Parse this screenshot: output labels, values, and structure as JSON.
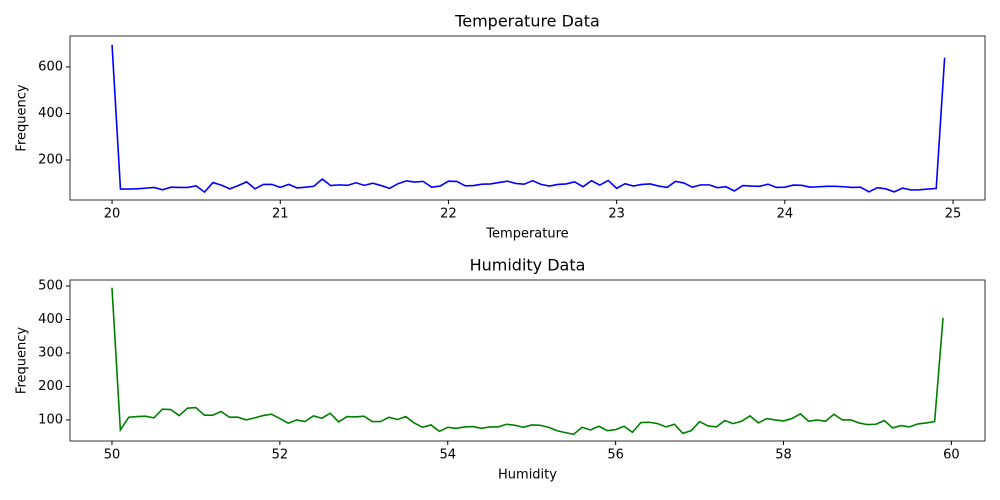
{
  "chart_data": [
    {
      "type": "line",
      "title": "Temperature Data",
      "xlabel": "Temperature",
      "ylabel": "Frequency",
      "x": [
        20,
        20.05,
        20.1,
        20.15,
        20.2,
        20.25,
        20.3,
        20.35,
        20.4,
        20.45,
        20.5,
        20.55,
        20.6,
        20.65,
        20.7,
        20.75,
        20.8,
        20.85,
        20.9,
        20.95,
        21,
        21.05,
        21.1,
        21.15,
        21.2,
        21.25,
        21.3,
        21.35,
        21.4,
        21.45,
        21.5,
        21.55,
        21.6,
        21.65,
        21.7,
        21.75,
        21.8,
        21.85,
        21.9,
        21.95,
        22,
        22.05,
        22.1,
        22.15,
        22.2,
        22.25,
        22.3,
        22.35,
        22.4,
        22.45,
        22.5,
        22.55,
        22.6,
        22.65,
        22.7,
        22.75,
        22.8,
        22.85,
        22.9,
        22.95,
        23,
        23.05,
        23.1,
        23.15,
        23.2,
        23.25,
        23.3,
        23.35,
        23.4,
        23.45,
        23.5,
        23.55,
        23.6,
        23.65,
        23.7,
        23.75,
        23.8,
        23.85,
        23.9,
        23.95,
        24,
        24.05,
        24.1,
        24.15,
        24.2,
        24.25,
        24.3,
        24.35,
        24.4,
        24.45,
        24.5,
        24.55,
        24.6,
        24.65,
        24.7,
        24.75,
        24.8,
        24.85,
        24.9,
        24.95
      ],
      "series": [
        {
          "name": "Temperature",
          "color": "#0000ff",
          "values": [
            695,
            75,
            75,
            76,
            79,
            82,
            72,
            83,
            82,
            82,
            89,
            62,
            103,
            92,
            76,
            90,
            106,
            76,
            95,
            95,
            82,
            95,
            80,
            83,
            87,
            118,
            90,
            93,
            91,
            102,
            91,
            100,
            90,
            78,
            98,
            110,
            105,
            108,
            83,
            88,
            109,
            108,
            89,
            90,
            96,
            97,
            103,
            109,
            99,
            96,
            111,
            95,
            88,
            95,
            97,
            106,
            85,
            111,
            92,
            112,
            78,
            98,
            88,
            95,
            97,
            88,
            82,
            108,
            101,
            83,
            93,
            93,
            81,
            85,
            67,
            90,
            88,
            87,
            96,
            82,
            83,
            92,
            91,
            83,
            85,
            87,
            87,
            85,
            82,
            83,
            63,
            81,
            76,
            63,
            79,
            71,
            72,
            75,
            78,
            640
          ]
        }
      ],
      "xlim": [
        19.75,
        25.19
      ],
      "ylim": [
        28,
        733
      ],
      "xticks": [
        20,
        21,
        22,
        23,
        24,
        25
      ],
      "yticks": [
        200,
        400,
        600
      ]
    },
    {
      "type": "line",
      "title": "Humidity Data",
      "xlabel": "Humidity",
      "ylabel": "Frequency",
      "x": [
        50,
        50.1,
        50.2,
        50.3,
        50.4,
        50.5,
        50.6,
        50.7,
        50.8,
        50.9,
        51,
        51.1,
        51.2,
        51.3,
        51.4,
        51.5,
        51.6,
        51.7,
        51.8,
        51.9,
        52,
        52.1,
        52.2,
        52.3,
        52.4,
        52.5,
        52.6,
        52.7,
        52.8,
        52.9,
        53,
        53.1,
        53.2,
        53.3,
        53.4,
        53.5,
        53.6,
        53.7,
        53.8,
        53.9,
        54,
        54.1,
        54.2,
        54.3,
        54.4,
        54.5,
        54.6,
        54.7,
        54.8,
        54.9,
        55,
        55.1,
        55.2,
        55.3,
        55.4,
        55.5,
        55.6,
        55.7,
        55.8,
        55.9,
        56,
        56.1,
        56.2,
        56.3,
        56.4,
        56.5,
        56.6,
        56.7,
        56.8,
        56.9,
        57,
        57.1,
        57.2,
        57.3,
        57.4,
        57.5,
        57.6,
        57.7,
        57.8,
        57.9,
        58,
        58.1,
        58.2,
        58.3,
        58.4,
        58.5,
        58.6,
        58.7,
        58.8,
        58.9,
        59,
        59.1,
        59.2,
        59.3,
        59.4,
        59.5,
        59.6,
        59.7,
        59.8,
        59.9
      ],
      "series": [
        {
          "name": "Humidity",
          "color": "#008000",
          "values": [
            495,
            70,
            108,
            110,
            111,
            106,
            132,
            131,
            113,
            135,
            137,
            114,
            114,
            125,
            108,
            108,
            100,
            106,
            113,
            117,
            104,
            90,
            100,
            95,
            112,
            105,
            120,
            94,
            110,
            109,
            111,
            95,
            95,
            108,
            101,
            110,
            91,
            78,
            85,
            66,
            78,
            75,
            79,
            80,
            75,
            79,
            79,
            87,
            84,
            78,
            85,
            84,
            78,
            68,
            62,
            57,
            78,
            70,
            81,
            68,
            71,
            81,
            63,
            92,
            93,
            89,
            79,
            87,
            60,
            68,
            95,
            82,
            79,
            98,
            89,
            96,
            112,
            91,
            104,
            100,
            97,
            104,
            118,
            96,
            100,
            96,
            117,
            100,
            100,
            91,
            86,
            87,
            98,
            76,
            83,
            79,
            88,
            91,
            95,
            405
          ]
        }
      ],
      "xlim": [
        49.5,
        60.4
      ],
      "ylim": [
        37,
        518
      ],
      "xticks": [
        50,
        52,
        54,
        56,
        58,
        60
      ],
      "yticks": [
        100,
        200,
        300,
        400,
        500
      ]
    }
  ]
}
